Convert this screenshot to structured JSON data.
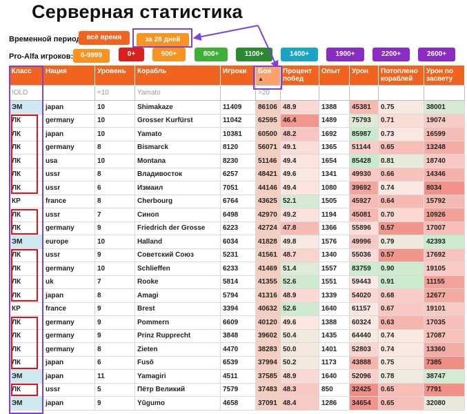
{
  "title": "Серверная статистика",
  "period": {
    "label": "Временной период:",
    "options": [
      "всё время",
      "за 28 дней"
    ]
  },
  "players": {
    "label": "Pro-Alfa игроков:",
    "options": [
      "0-9999",
      "0+",
      "500+",
      "800+",
      "1100+",
      "1400+",
      "1900+",
      "2200+",
      "2600+"
    ],
    "colors": [
      "#f7931e",
      "#d9201c",
      "#f7931e",
      "#3fb037",
      "#2b8a2f",
      "#1aa5c4",
      "#8a2bc4",
      "#8a2bc4",
      "#8a2bc4"
    ]
  },
  "table": {
    "headers": [
      "Класс",
      "Нация",
      "Уровень",
      "Корабль",
      "Игроки",
      "Бои",
      "Процент побед",
      "Опыт",
      "Урон",
      "Потоплено кораблей",
      "Урон по засвету"
    ],
    "filters": [
      "!OLD",
      "",
      "=10",
      "Yamato",
      "",
      ">20",
      "",
      "",
      "",
      "",
      ""
    ],
    "rows": [
      [
        "ЭМ",
        "japan",
        "10",
        "Shimakaze",
        "11409",
        "86106",
        "48.9",
        "1388",
        "45381",
        "0.75",
        "38001"
      ],
      [
        "ЛК",
        "germany",
        "10",
        "Grosser Kurfürst",
        "11042",
        "62595",
        "46.4",
        "1489",
        "75793",
        "0.71",
        "19074"
      ],
      [
        "ЛК",
        "japan",
        "10",
        "Yamato",
        "10381",
        "60500",
        "48.2",
        "1692",
        "85987",
        "0.73",
        "16599"
      ],
      [
        "ЛК",
        "germany",
        "8",
        "Bismarck",
        "8120",
        "56071",
        "49.1",
        "1365",
        "51144",
        "0.65",
        "13248"
      ],
      [
        "ЛК",
        "usa",
        "10",
        "Montana",
        "8230",
        "51146",
        "49.4",
        "1654",
        "85428",
        "0.81",
        "18740"
      ],
      [
        "ЛК",
        "ussr",
        "8",
        "Владивосток",
        "6257",
        "48421",
        "49.6",
        "1341",
        "49930",
        "0.66",
        "14346"
      ],
      [
        "ЛК",
        "ussr",
        "6",
        "Измаил",
        "7051",
        "44146",
        "49.4",
        "1080",
        "39692",
        "0.74",
        "8034"
      ],
      [
        "КР",
        "france",
        "8",
        "Cherbourg",
        "6764",
        "43625",
        "52.1",
        "1505",
        "45927",
        "0.64",
        "15792"
      ],
      [
        "ЛК",
        "ussr",
        "7",
        "Синоп",
        "6498",
        "42970",
        "49.2",
        "1194",
        "45081",
        "0.70",
        "10926"
      ],
      [
        "ЛК",
        "germany",
        "9",
        "Friedrich der Grosse",
        "6223",
        "42724",
        "47.8",
        "1366",
        "55896",
        "0.57",
        "17007"
      ],
      [
        "ЭМ",
        "europe",
        "10",
        "Halland",
        "6034",
        "41828",
        "49.8",
        "1576",
        "49996",
        "0.79",
        "42393"
      ],
      [
        "ЛК",
        "ussr",
        "9",
        "Советский Союз",
        "5231",
        "41561",
        "48.7",
        "1340",
        "55036",
        "0.57",
        "17692"
      ],
      [
        "ЛК",
        "germany",
        "10",
        "Schlieffen",
        "6233",
        "41469",
        "51.4",
        "1557",
        "83759",
        "0.90",
        "19105"
      ],
      [
        "ЛК",
        "uk",
        "7",
        "Rooke",
        "5814",
        "41355",
        "52.6",
        "1551",
        "59443",
        "0.91",
        "11155"
      ],
      [
        "ЛК",
        "japan",
        "8",
        "Amagi",
        "5794",
        "41316",
        "48.9",
        "1339",
        "54020",
        "0.68",
        "12677"
      ],
      [
        "КР",
        "france",
        "9",
        "Brest",
        "3394",
        "40632",
        "52.6",
        "1640",
        "61157",
        "0.67",
        "19101"
      ],
      [
        "ЛК",
        "germany",
        "9",
        "Pommern",
        "6609",
        "40120",
        "49.6",
        "1388",
        "60324",
        "0.63",
        "17035"
      ],
      [
        "ЛК",
        "germany",
        "9",
        "Prinz Rupprecht",
        "3848",
        "39602",
        "50.4",
        "1435",
        "64440",
        "0.74",
        "17087"
      ],
      [
        "ЛК",
        "germany",
        "8",
        "Zieten",
        "4470",
        "38283",
        "50.0",
        "1401",
        "52803",
        "0.74",
        "13360"
      ],
      [
        "ЛК",
        "japan",
        "6",
        "Fusō",
        "6539",
        "37994",
        "50.2",
        "1173",
        "43888",
        "0.75",
        "7385"
      ],
      [
        "ЭМ",
        "japan",
        "11",
        "Yamagiri",
        "4511",
        "37585",
        "48.9",
        "1640",
        "52096",
        "0.78",
        "38747"
      ],
      [
        "ЛК",
        "ussr",
        "5",
        "Пётр Великий",
        "7579",
        "37483",
        "48.3",
        "850",
        "32425",
        "0.65",
        "7791"
      ],
      [
        "ЭМ",
        "japan",
        "9",
        "Yūgumo",
        "4658",
        "37091",
        "48.4",
        "1286",
        "34654",
        "0.65",
        "32080"
      ]
    ],
    "cell_colors": {
      "class_em": "#cfe9f0",
      "class_lk": "#ffffff",
      "class_kr": "#ffffff"
    }
  }
}
